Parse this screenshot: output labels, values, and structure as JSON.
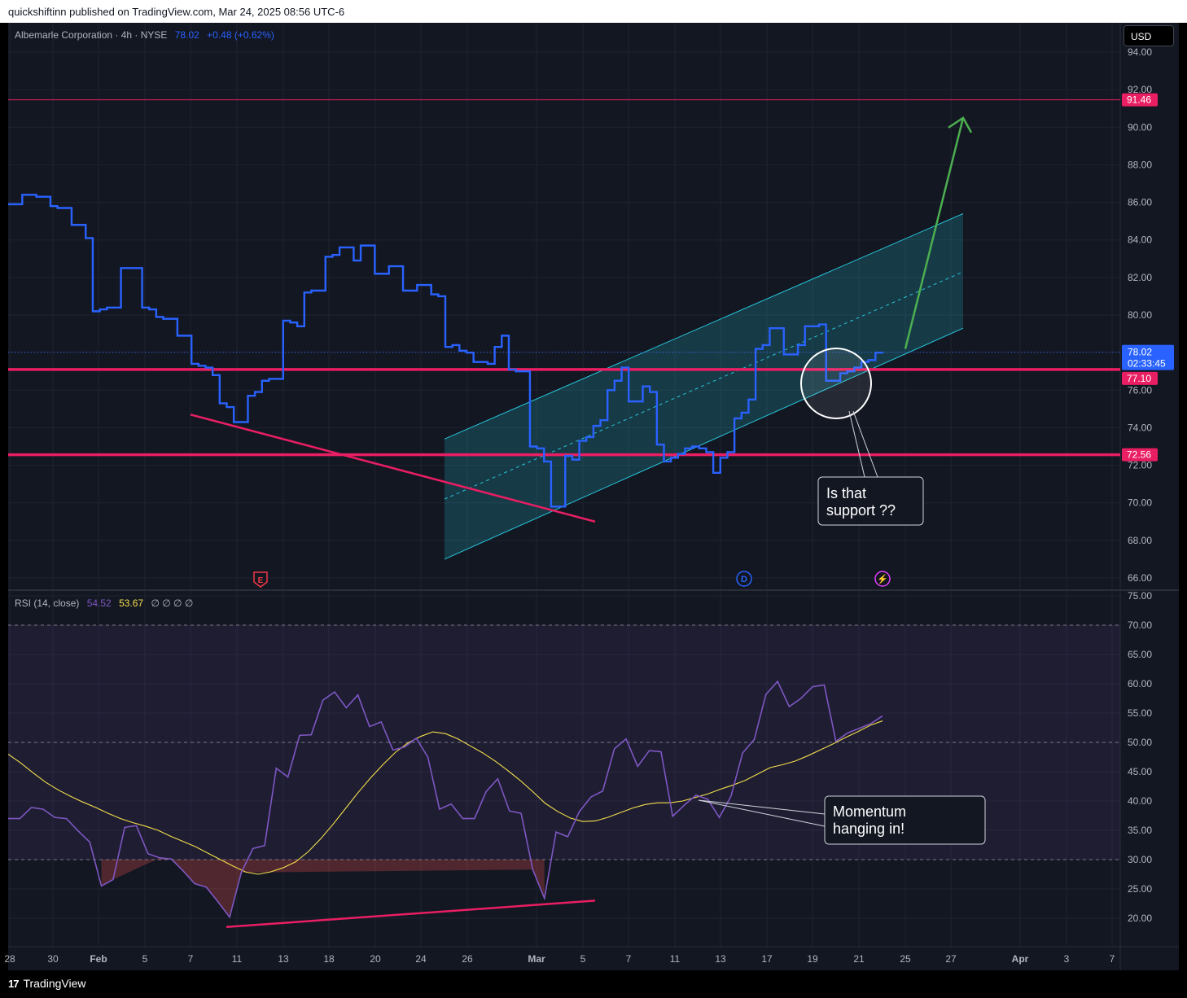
{
  "header": {
    "published": "quickshiftinn published on TradingView.com, Mar 24, 2025 08:56 UTC-6"
  },
  "symbol_legend": {
    "name": "Albemarle Corporation · 4h · NYSE",
    "price": "78.02",
    "change": "+0.48 (+0.62%)"
  },
  "currency_button": "USD",
  "rsi_legend": {
    "name": "RSI (14, close)",
    "rsi_value": "54.52",
    "ma_value": "53.67",
    "extra": "∅ ∅ ∅ ∅"
  },
  "price_axis_labels": [
    "94.00",
    "92.00",
    "90.00",
    "88.00",
    "86.00",
    "84.00",
    "82.00",
    "80.00",
    "78.00",
    "76.00",
    "74.00",
    "72.00",
    "70.00",
    "68.00",
    "66.00"
  ],
  "rsi_axis_labels": [
    "75.00",
    "70.00",
    "65.00",
    "60.00",
    "55.00",
    "50.00",
    "45.00",
    "40.00",
    "35.00",
    "30.00",
    "25.00",
    "20.00"
  ],
  "time_axis_labels": [
    "28",
    "30",
    "Feb",
    "5",
    "7",
    "11",
    "13",
    "18",
    "20",
    "24",
    "26",
    "Mar",
    "5",
    "7",
    "11",
    "13",
    "17",
    "19",
    "21",
    "25",
    "27",
    "Apr",
    "3",
    "7"
  ],
  "price_tags": {
    "resistance": "91.46",
    "current_price": "78.02",
    "countdown": "02:33:45",
    "support_upper": "77.10",
    "support_lower": "72.56"
  },
  "event_markers": [
    "E",
    "D",
    "⚡"
  ],
  "annotations": {
    "support_question_line1": "Is that",
    "support_question_line2": "support ??",
    "momentum_line1": "Momentum",
    "momentum_line2": "hanging in!"
  },
  "footer": {
    "brand": "TradingView"
  },
  "colors": {
    "price_line": "#2962ff",
    "rsi_line": "#7e57c2",
    "rsi_ma": "#f5df4d",
    "horizontal_levels": "#e91e63",
    "channel": "#26c6da",
    "projection_arrow": "#4caf50",
    "background": "#131722"
  },
  "chart_data": [
    {
      "type": "line",
      "title": "Albemarle Corporation · 4h · NYSE",
      "x_range": [
        "Jan 28",
        "Apr 8"
      ],
      "ylim": [
        66,
        94
      ],
      "grid": true,
      "y": [
        85.9,
        85.9,
        86.4,
        86.4,
        86.3,
        86.3,
        85.8,
        85.7,
        85.7,
        84.8,
        84.8,
        84.1,
        80.2,
        80.3,
        80.4,
        80.4,
        82.5,
        82.5,
        82.5,
        80.4,
        80.3,
        79.9,
        79.8,
        79.8,
        78.9,
        78.9,
        77.4,
        77.3,
        77.2,
        76.8,
        75.3,
        75.1,
        74.3,
        74.3,
        75.7,
        75.9,
        76.5,
        76.6,
        76.6,
        79.7,
        79.6,
        79.4,
        81.2,
        81.3,
        81.3,
        83.1,
        83.2,
        83.6,
        83.6,
        82.9,
        83.7,
        83.7,
        82.2,
        82.2,
        82.6,
        82.6,
        81.3,
        81.3,
        81.6,
        81.6,
        81.1,
        81.0,
        78.3,
        78.4,
        78.1,
        78.0,
        77.5,
        77.5,
        77.4,
        78.3,
        78.9,
        77.1,
        77.0,
        77.0,
        73.0,
        72.9,
        72.2,
        69.8,
        69.8,
        72.5,
        72.3,
        73.3,
        73.5,
        74.1,
        74.4,
        76.0,
        76.5,
        77.2,
        75.4,
        75.4,
        76.2,
        75.9,
        73.1,
        72.2,
        72.4,
        72.6,
        72.9,
        73.0,
        72.9,
        72.7,
        71.6,
        72.4,
        72.7,
        74.5,
        74.8,
        75.5,
        78.2,
        78.4,
        79.3,
        79.3,
        77.9,
        77.9,
        78.4,
        79.4,
        79.4,
        79.5,
        76.5,
        76.5,
        76.9,
        77.0,
        77.2,
        77.5,
        77.6,
        78.0,
        78.02
      ],
      "levels": [
        91.46,
        77.1,
        72.56
      ],
      "channel": {
        "start": "Feb 25",
        "end": "Mar 27",
        "upper": [
          73.4,
          85.4
        ],
        "middle": [
          70.2,
          82.3
        ],
        "lower": [
          67.0,
          79.3
        ]
      },
      "trendline": {
        "from": [
          "Feb 7",
          74.7
        ],
        "to": [
          "Mar 6",
          69.0
        ]
      },
      "projection_arrow": {
        "from": [
          "Mar 25",
          78.2
        ],
        "to": [
          "Mar 27",
          90.5
        ]
      }
    },
    {
      "type": "line",
      "title": "RSI (14, close)",
      "ylim": [
        17,
        76
      ],
      "bands": [
        30,
        50,
        70
      ],
      "series": [
        {
          "name": "RSI",
          "values": [
            37.0,
            37.0,
            38.9,
            38.6,
            37.2,
            37.0,
            34.9,
            33.0,
            25.5,
            26.6,
            35.5,
            35.8,
            31.0,
            30.3,
            30.1,
            28.1,
            25.9,
            25.3,
            22.8,
            20.2,
            27.8,
            31.9,
            32.4,
            45.6,
            44.1,
            51.2,
            51.3,
            57.2,
            58.6,
            55.9,
            58.1,
            52.7,
            53.5,
            48.7,
            49.2,
            50.7,
            47.5,
            38.6,
            39.5,
            37.0,
            37.0,
            41.6,
            43.8,
            38.3,
            37.9,
            28.3,
            23.4,
            34.7,
            33.9,
            38.2,
            40.7,
            41.7,
            48.9,
            50.6,
            45.9,
            48.6,
            48.4,
            37.4,
            39.3,
            41.0,
            40.3,
            37.2,
            40.8,
            48.2,
            50.5,
            58.2,
            60.4,
            56.1,
            57.5,
            59.5,
            59.8,
            50.2,
            51.6,
            52.4,
            53.2,
            54.52
          ]
        },
        {
          "name": "RSI MA",
          "values": [
            48.0,
            46.5,
            44.8,
            43.2,
            41.9,
            40.8,
            39.8,
            38.9,
            37.9,
            37.0,
            36.3,
            35.7,
            35.0,
            34.0,
            33.1,
            32.2,
            31.1,
            30.0,
            28.9,
            27.9,
            27.5,
            27.9,
            28.6,
            29.6,
            31.3,
            33.5,
            36.0,
            38.7,
            41.4,
            43.9,
            46.2,
            48.3,
            49.9,
            51.0,
            51.8,
            51.5,
            50.6,
            49.4,
            48.2,
            46.8,
            45.2,
            43.5,
            41.6,
            39.6,
            38.2,
            37.1,
            36.5,
            36.6,
            37.2,
            38.0,
            38.8,
            39.4,
            39.7,
            39.7,
            40.0,
            40.6,
            41.2,
            42.0,
            42.7,
            43.5,
            44.6,
            45.7,
            46.2,
            46.8,
            47.7,
            48.7,
            49.7,
            50.8,
            51.8,
            52.9,
            53.67
          ]
        }
      ],
      "trendline": {
        "from": [
          "Feb 10",
          18.5
        ],
        "to": [
          "Mar 6",
          23.0
        ]
      }
    }
  ]
}
